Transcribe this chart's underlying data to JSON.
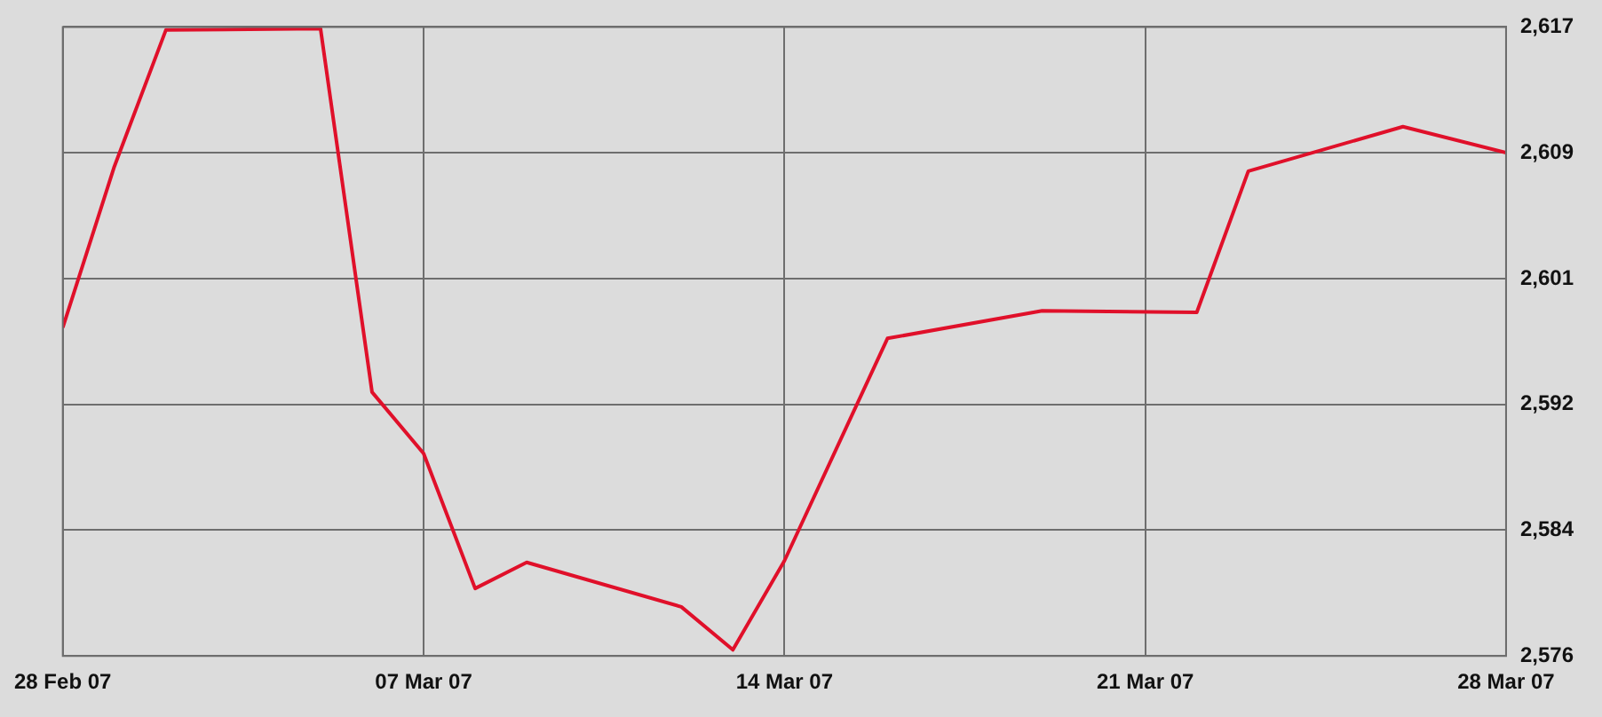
{
  "chart_data": {
    "type": "line",
    "x": [
      "--02-28",
      "--03-01",
      "--03-02",
      "--03-05",
      "--03-06",
      "--03-07",
      "--03-08",
      "--03-09",
      "--03-12",
      "--03-13",
      "--03-14",
      "--03-16",
      "--03-19",
      "--03-22",
      "--03-23",
      "--03-26",
      "--03-28"
    ],
    "series": [
      {
        "color": "#e0102a",
        "values": [
          2597.4,
          2607.9,
          2616.8,
          2616.9,
          2593.2,
          2589.2,
          2580.4,
          2582.1,
          2579.2,
          2576.4,
          2582.2,
          2596.7,
          2598.5,
          2598.4,
          2607.6,
          2610.5,
          2608.8
        ]
      }
    ],
    "xlim": [
      "--02-28",
      "--03-28"
    ],
    "xticks": [
      {
        "value": "--02-28",
        "label": "28 Feb 07"
      },
      {
        "value": "--03-07",
        "label": "07 Mar 07"
      },
      {
        "value": "--03-14",
        "label": "14 Mar 07"
      },
      {
        "value": "--03-21",
        "label": "21 Mar 07"
      },
      {
        "value": "--03-28",
        "label": "28 Mar 07"
      }
    ],
    "ylim": [
      2576,
      2617
    ],
    "yticks": [
      {
        "value": 2576,
        "label": "2,576"
      },
      {
        "value": 2584.2,
        "label": "2,584"
      },
      {
        "value": 2592.4,
        "label": "2,592"
      },
      {
        "value": 2600.6,
        "label": "2,601"
      },
      {
        "value": 2608.8,
        "label": "2,609"
      },
      {
        "value": 2617,
        "label": "2,617"
      }
    ],
    "grid": true,
    "legend": false,
    "marker": "none",
    "line_style": "solid"
  }
}
